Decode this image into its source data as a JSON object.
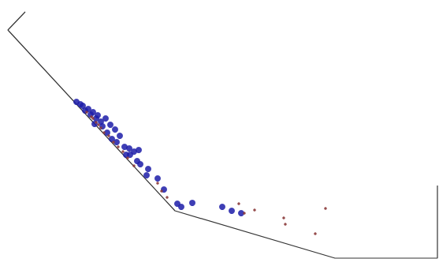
{
  "chart_data": {
    "type": "scatter",
    "grid": false,
    "tick_labels": false,
    "xlim": [
      0,
      557
    ],
    "ylim": [
      0,
      342
    ],
    "series": [
      {
        "type": "line",
        "color": "#333333",
        "line_style": "solid",
        "x": [
          32,
          10,
          222,
          425,
          555,
          555
        ],
        "values": [
          327,
          304,
          75,
          15,
          15,
          107
        ]
      },
      {
        "type": "scatter",
        "color": "#1c1ca8",
        "marker": "circle",
        "x": [
          97,
          105,
          112,
          118,
          124,
          108,
          115,
          122,
          128,
          134,
          140,
          146,
          152,
          158,
          164,
          170,
          176,
          165,
          178,
          186,
          200,
          208,
          225,
          230,
          244,
          282,
          294,
          306,
          148,
          160,
          130,
          136,
          142,
          120,
          102,
          188,
          174
        ],
        "values": [
          213,
          208,
          204,
          200,
          196,
          202,
          197,
          192,
          188,
          192,
          184,
          178,
          170,
          156,
          154,
          150,
          152,
          146,
          134,
          120,
          116,
          102,
          84,
          80,
          85,
          80,
          75,
          72,
          162,
          146,
          182,
          174,
          166,
          185,
          210,
          128,
          138
        ]
      },
      {
        "type": "scatter",
        "color": "#8b3a3a",
        "marker": "dot",
        "x": [
          110,
          116,
          122,
          128,
          132,
          138,
          144,
          150,
          156,
          162,
          170,
          200,
          205,
          212,
          303,
          310,
          323,
          360,
          362,
          400,
          413,
          118,
          125
        ],
        "values": [
          200,
          194,
          187,
          180,
          174,
          170,
          162,
          156,
          150,
          142,
          132,
          110,
          100,
          92,
          84,
          72,
          76,
          66,
          58,
          46,
          78,
          192,
          184
        ]
      }
    ]
  }
}
